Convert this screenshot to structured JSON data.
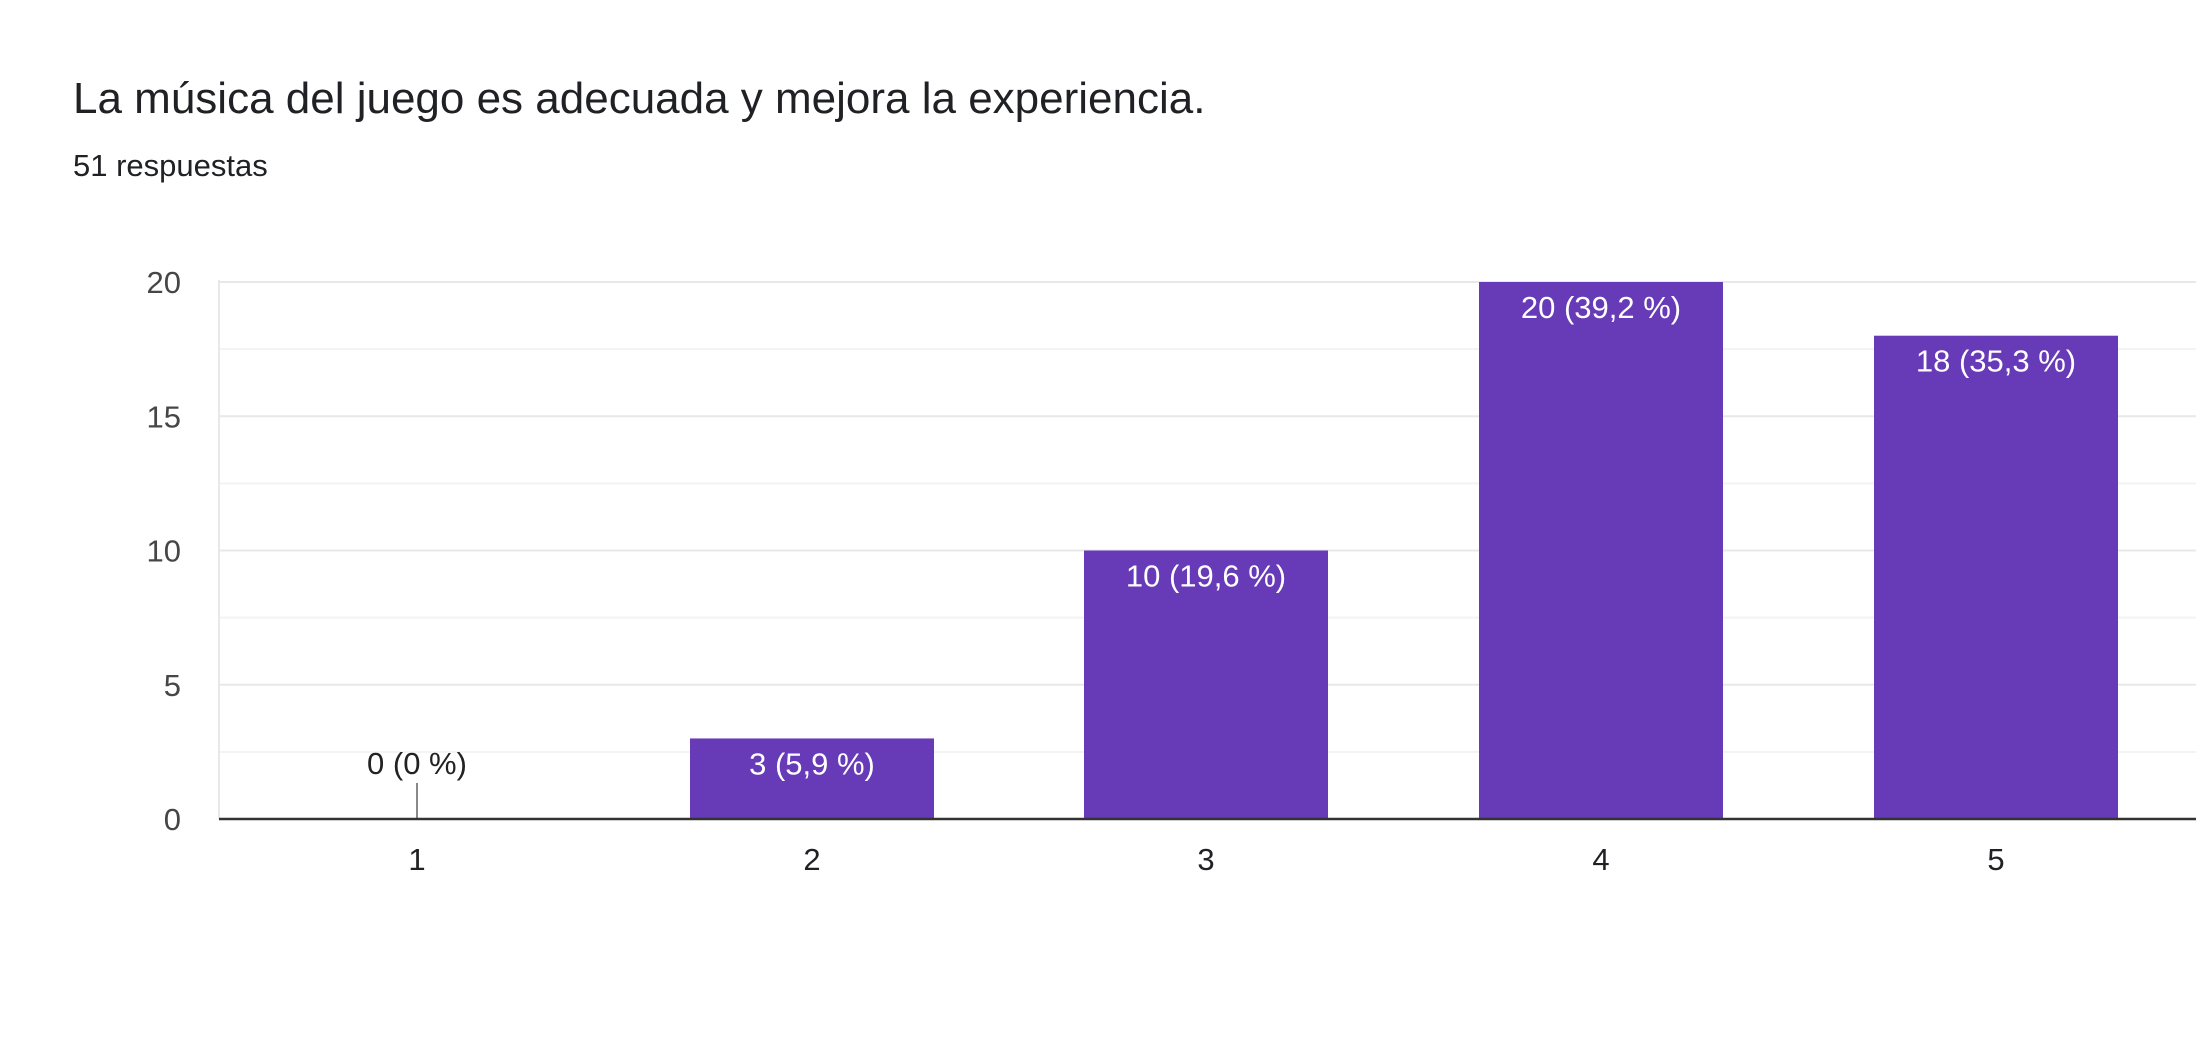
{
  "header": {
    "title": "La música del juego es adecuada y mejora la experiencia.",
    "subtitle": "51 respuestas"
  },
  "colors": {
    "bar": "#673ab7",
    "gridline": "#e8e8e8",
    "minor_gridline": "#f3f3f3",
    "axis": "#333333",
    "text": "#202124",
    "tick_text": "#444746",
    "label_inside": "#ffffff",
    "label_outside": "#222222"
  },
  "chart_data": {
    "type": "bar",
    "title": "La música del juego es adecuada y mejora la experiencia.",
    "subtitle": "51 respuestas",
    "categories": [
      "1",
      "2",
      "3",
      "4",
      "5"
    ],
    "values": [
      0,
      3,
      10,
      20,
      18
    ],
    "data_labels": [
      "0 (0 %)",
      "3 (5,9 %)",
      "10 (19,6 %)",
      "20 (39,2 %)",
      "18 (35,3 %)"
    ],
    "ylim": [
      0,
      20
    ],
    "yticks": [
      0,
      5,
      10,
      15,
      20
    ],
    "ytick_labels": [
      "0",
      "5",
      "10",
      "15",
      "20"
    ],
    "xlabel": "",
    "ylabel": "",
    "grid": true,
    "legend": "none"
  }
}
